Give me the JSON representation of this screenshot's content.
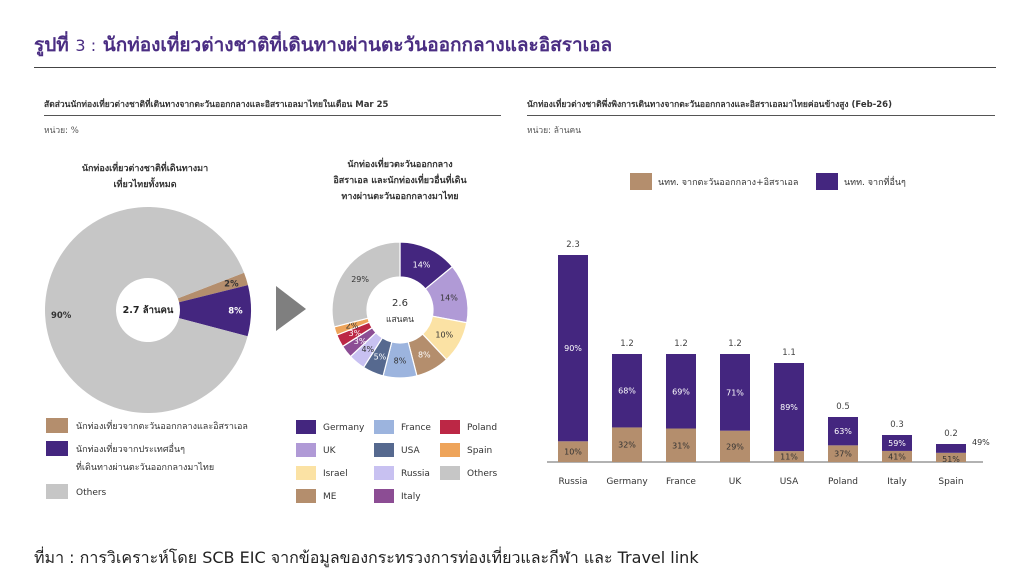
{
  "figure": {
    "title_prefix": "รูปที่",
    "title_num": "3 :",
    "title_text": "นักท่องเที่ยวต่างชาติที่เดินทางผ่านตะวันออกกลางและอิสราเอล"
  },
  "left_panel": {
    "title": "สัดส่วนนักท่องเที่ยวต่างชาติที่เดินทางจากตะวันออกกลางและอิสราเอลมาไทยในเดือน Mar 25",
    "unit": "หน่วย: %"
  },
  "right_panel": {
    "title": "นักท่องเที่ยวต่างชาติพึ่งพิงการเดินทางจากตะวันออกกลางและอิสราเอลมาไทยค่อนข้างสูง (Feb-26)",
    "unit": "หน่วย: ล้านคน"
  },
  "source": "ที่มา : การวิเคราะห์โดย SCB EIC จากข้อมูลของกระทรวงการท่องเที่ยวและกีฬา และ Travel link",
  "colors": {
    "purple": "#44267f",
    "tan": "#b48e6d",
    "gray": "#c6c6c6",
    "lavender": "#b09ad6",
    "steel_blue": "#9cb4de",
    "navy_blue": "#56698f",
    "cream": "#fbe2a4",
    "periwinkle": "#c8c1f1",
    "crimson": "#bc2745",
    "orange": "#eea45a",
    "magenta": "#8c4d94",
    "title": "#4b2e83"
  },
  "chart_data": [
    {
      "type": "pie",
      "title": "นักท่องเที่ยวต่างชาติที่เดินทางมาเที่ยวไทยทั้งหมด",
      "center_label": "2.7 ล้านคน",
      "labels": [
        "นักท่องเที่ยวจากตะวันออกกลางและอิสราเอล",
        "นักท่องเที่ยวจากประเทศอื่นๆ ที่เดินทางผ่านตะวันออกกลางมาไทย",
        "Others"
      ],
      "legend_lines": [
        [
          "นักท่องเที่ยวจากตะวันออกกลางและอิสราเอล"
        ],
        [
          "นักท่องเที่ยวจากประเทศอื่นๆ",
          "ที่เดินทางผ่านตะวันออกกลางมาไทย"
        ],
        [
          "Others"
        ]
      ],
      "values": [
        2,
        8,
        90
      ],
      "value_labels": [
        "2%",
        "8%",
        "90%"
      ],
      "colors": [
        "#b48e6d",
        "#44267f",
        "#c6c6c6"
      ]
    },
    {
      "type": "pie",
      "title_lines": [
        "นักท่องเที่ยวตะวันออกกลาง",
        "อิสราเอล และนักท่องเที่ยวอื่นที่เดิน",
        "ทางผ่านตะวันออกกลางมาไทย"
      ],
      "center_value": "2.6",
      "center_unit": "แสนคน",
      "labels": [
        "Germany",
        "UK",
        "Israel",
        "ME",
        "France",
        "USA",
        "Russia",
        "Italy",
        "Poland",
        "Spain",
        "Others"
      ],
      "values": [
        14,
        14,
        10,
        8,
        8,
        5,
        4,
        3,
        3,
        2,
        29
      ],
      "value_labels": [
        "14%",
        "14%",
        "10%",
        "8%",
        "8%",
        "5%",
        "4%",
        "3%",
        "3%",
        "2%",
        "29%"
      ],
      "colors": [
        "#44267f",
        "#b09ad6",
        "#fbe2a4",
        "#b48e6d",
        "#9cb4de",
        "#56698f",
        "#c8c1f1",
        "#8c4d94",
        "#bc2745",
        "#eea45a",
        "#c6c6c6"
      ]
    },
    {
      "type": "bar",
      "stacked": true,
      "categories": [
        "Russia",
        "Germany",
        "France",
        "UK",
        "USA",
        "Poland",
        "Italy",
        "Spain"
      ],
      "totals": [
        2.3,
        1.2,
        1.2,
        1.2,
        1.1,
        0.5,
        0.3,
        0.2
      ],
      "total_labels": [
        "2.3",
        "1.2",
        "1.2",
        "1.2",
        "1.1",
        "0.5",
        "0.3",
        "0.2"
      ],
      "series": [
        {
          "name": "นทท. จากตะวันออกกลาง+อิสราเอล",
          "share_pct": [
            10,
            32,
            31,
            29,
            11,
            37,
            41,
            51
          ],
          "labels": [
            "10%",
            "32%",
            "31%",
            "29%",
            "11%",
            "37%",
            "41%",
            "51%"
          ],
          "color": "#b48e6d"
        },
        {
          "name": "นทท. จากที่อื่นๆ",
          "share_pct": [
            90,
            68,
            69,
            71,
            89,
            63,
            59,
            49
          ],
          "labels": [
            "90%",
            "68%",
            "69%",
            "71%",
            "89%",
            "63%",
            "59%",
            "49%"
          ],
          "color": "#44267f"
        }
      ],
      "ylim": [
        0,
        2.3
      ]
    }
  ]
}
